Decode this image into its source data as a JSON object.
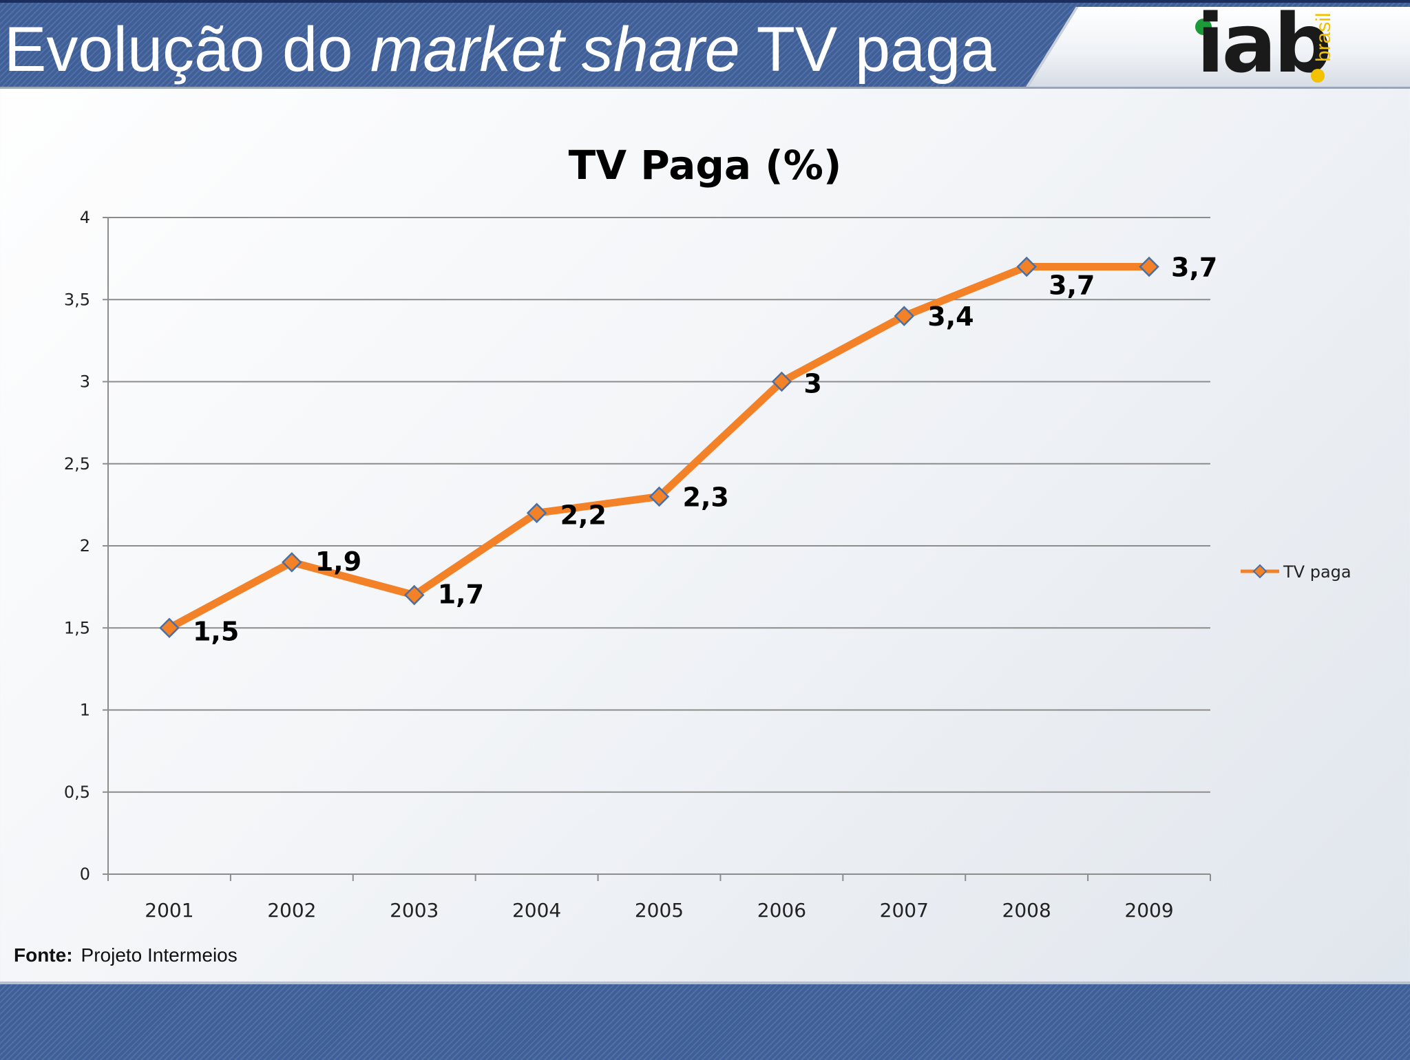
{
  "slide": {
    "title_part1": "Evolução do ",
    "title_italic": "market share",
    "title_part2": " TV paga",
    "logo_text": "iab",
    "logo_sub": "brasil",
    "source_label": "Fonte:",
    "source_value": "Projeto Intermeios"
  },
  "chart_data": {
    "type": "line",
    "title": "TV Paga (%)",
    "xlabel": "",
    "ylabel": "",
    "categories": [
      "2001",
      "2002",
      "2003",
      "2004",
      "2005",
      "2006",
      "2007",
      "2008",
      "2009"
    ],
    "series": [
      {
        "name": "TV paga",
        "values": [
          1.5,
          1.9,
          1.7,
          2.2,
          2.3,
          3.0,
          3.4,
          3.7,
          3.7
        ],
        "labels": [
          "1,5",
          "1,9",
          "1,7",
          "2,2",
          "2,3",
          "3",
          "3,4",
          "3,7",
          "3,7"
        ],
        "color": "#f28127",
        "marker": "diamond",
        "marker_edge_color": "#4a6fa5"
      }
    ],
    "ylim": [
      0,
      4
    ],
    "yticks": [
      "0",
      "0,5",
      "1",
      "1,5",
      "2",
      "2,5",
      "3",
      "3,5",
      "4"
    ],
    "grid": true,
    "legend": "right"
  }
}
